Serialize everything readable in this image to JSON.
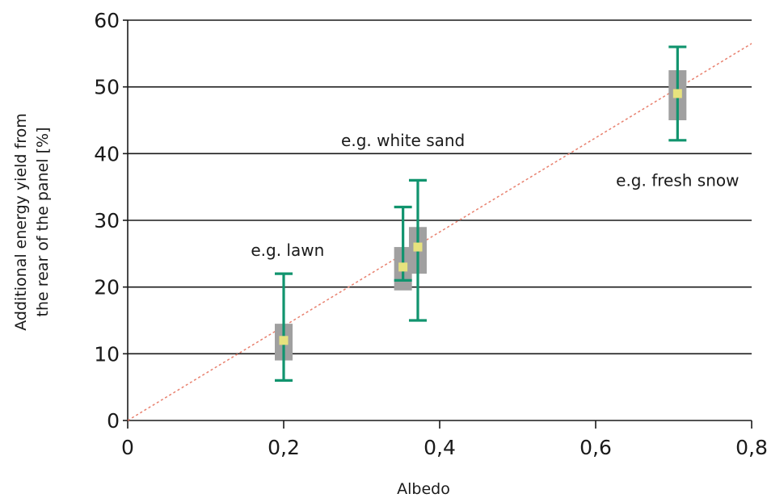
{
  "chart_data": {
    "type": "scatter",
    "xlabel": "Albedo",
    "ylabel_lines": [
      "Additional energy yield from",
      "the rear of the panel [%]"
    ],
    "xlim": [
      0,
      0.8
    ],
    "ylim": [
      0,
      60
    ],
    "x_ticks": [
      0,
      0.2,
      0.4,
      0.6,
      0.8
    ],
    "x_tick_labels": [
      "0",
      "0,2",
      "0,4",
      "0,6",
      "0,8"
    ],
    "y_ticks": [
      0,
      10,
      20,
      30,
      40,
      50,
      60
    ],
    "y_tick_labels": [
      "0",
      "10",
      "20",
      "30",
      "40",
      "50",
      "60"
    ],
    "grid": "horizontal",
    "trend_line": {
      "x": [
        0,
        0.8
      ],
      "y": [
        0,
        56.5
      ],
      "style": "dotted",
      "color": "#e8806e"
    },
    "points": [
      {
        "x": 0.2,
        "y": 12,
        "box_low": 9,
        "box_high": 14.5,
        "err_low": 6,
        "err_high": 22
      },
      {
        "x": 0.353,
        "y": 23,
        "box_low": 19.5,
        "box_high": 26,
        "err_low": 21,
        "err_high": 32
      },
      {
        "x": 0.372,
        "y": 26,
        "box_low": 22,
        "box_high": 29,
        "err_low": 15,
        "err_high": 36
      },
      {
        "x": 0.705,
        "y": 49,
        "box_low": 45,
        "box_high": 52.5,
        "err_low": 42,
        "err_high": 56
      }
    ],
    "annotations": [
      {
        "text": "e.g. lawn",
        "x": 0.205,
        "y": 25.5
      },
      {
        "text": "e.g. white sand",
        "x": 0.353,
        "y": 42
      },
      {
        "text": "e.g. fresh snow",
        "x": 0.705,
        "y": 36
      }
    ],
    "colors": {
      "point": "#e6e27e",
      "box": "#a0a0a0",
      "error_bar": "#11946e",
      "grid": "#1a1a1a",
      "trend": "#e8806e"
    }
  }
}
